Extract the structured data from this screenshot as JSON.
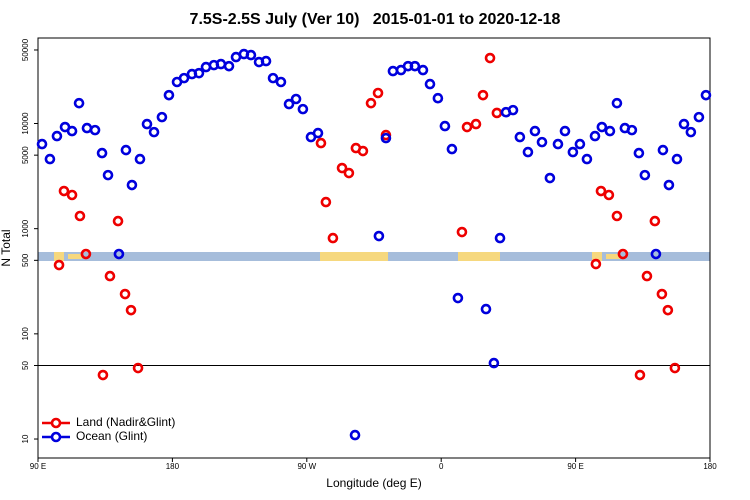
{
  "chart_data": {
    "type": "scatter",
    "title": "7.5S-2.5S July (Ver 10)   2015-01-01 to 2020-12-18",
    "x_label": "Longitude (deg E)",
    "y_label": "N Total",
    "log_y": true,
    "legend": "lower left",
    "reference_line": 50,
    "xlim": [
      90,
      540
    ],
    "ylim": [
      6.6,
      65000
    ],
    "xticks": [
      {
        "value": 90,
        "label": "90 E"
      },
      180,
      {
        "value": 270,
        "label": "90 W"
      },
      {
        "value": 360,
        "label": "0"
      },
      {
        "value": 450,
        "label": "90 E"
      },
      {
        "value": 540,
        "label": "180"
      }
    ],
    "yticks": [
      10,
      50,
      100,
      500,
      1000,
      5000,
      10000,
      50000
    ],
    "series": [
      {
        "name": "Land (Nadir&Glint)",
        "color": "#ee0000",
        "x": [
          104.1,
          107.4,
          112.8,
          118.1,
          122.1,
          133.5,
          138.2,
          143.6,
          148.3,
          152.3,
          157.0,
          279.5,
          282.8,
          287.5,
          293.6,
          298.2,
          302.9,
          307.6,
          313.0,
          317.7,
          323.0,
          373.9,
          377.3,
          383.3,
          388.0,
          392.7,
          397.3,
          463.6,
          467.0,
          472.3,
          477.7,
          481.7,
          493.1,
          497.8,
          503.1,
          507.8,
          511.8,
          516.5
        ],
        "values": [
          451,
          2280,
          2090,
          1320,
          574,
          40.6,
          354,
          1180,
          239,
          168,
          47.3,
          6510,
          1790,
          814,
          3770,
          3380,
          5840,
          5470,
          15600,
          19500,
          7760,
          929,
          9250,
          9870,
          18600,
          41900,
          12600,
          461,
          2280,
          2090,
          1320,
          574,
          40.6,
          354,
          1180,
          239,
          168,
          47.3
        ]
      },
      {
        "name": "Ocean (Glint)",
        "color": "#0000dd",
        "x": [
          92.7,
          98.0,
          102.7,
          108.1,
          112.8,
          117.5,
          122.8,
          128.2,
          132.9,
          136.9,
          144.2,
          148.9,
          152.9,
          158.3,
          163.0,
          167.7,
          173.0,
          177.7,
          183.1,
          187.8,
          193.1,
          197.8,
          202.5,
          207.8,
          212.5,
          217.9,
          222.6,
          227.9,
          232.6,
          238.0,
          242.7,
          247.4,
          252.7,
          258.1,
          262.8,
          267.4,
          272.8,
          277.5,
          302.3,
          318.3,
          323.0,
          327.7,
          333.1,
          337.8,
          342.4,
          347.8,
          352.5,
          357.8,
          362.5,
          367.2,
          371.2,
          390.0,
          395.3,
          399.4,
          403.4,
          408.1,
          412.7,
          418.1,
          422.8,
          427.5,
          432.8,
          438.2,
          442.9,
          448.2,
          452.9,
          457.6,
          463.0,
          467.6,
          473.0,
          477.7,
          483.0,
          487.7,
          492.4,
          496.4,
          503.8,
          508.5,
          512.5,
          517.9,
          522.6,
          527.2,
          532.6,
          537.3
        ],
        "values": [
          6370,
          4590,
          7590,
          9250,
          8470,
          15600,
          9040,
          8650,
          5230,
          3230,
          574,
          5590,
          2600,
          4590,
          9870,
          8280,
          11500,
          18600,
          24800,
          27000,
          29500,
          30100,
          34400,
          35900,
          36700,
          35100,
          42800,
          45700,
          44700,
          38400,
          39200,
          27000,
          24800,
          15300,
          17100,
          13700,
          7430,
          8110,
          10.9,
          851,
          7260,
          31500,
          32200,
          35100,
          35100,
          32200,
          23700,
          17400,
          9450,
          5710,
          219,
          172,
          52.7,
          814,
          12800,
          13400,
          7430,
          5350,
          8470,
          6650,
          3030,
          6370,
          8470,
          5350,
          6370,
          4590,
          7590,
          9250,
          8470,
          15600,
          9040,
          8650,
          5230,
          3230,
          574,
          5590,
          2600,
          4590,
          9870,
          8280,
          11500,
          18600
        ]
      }
    ]
  }
}
